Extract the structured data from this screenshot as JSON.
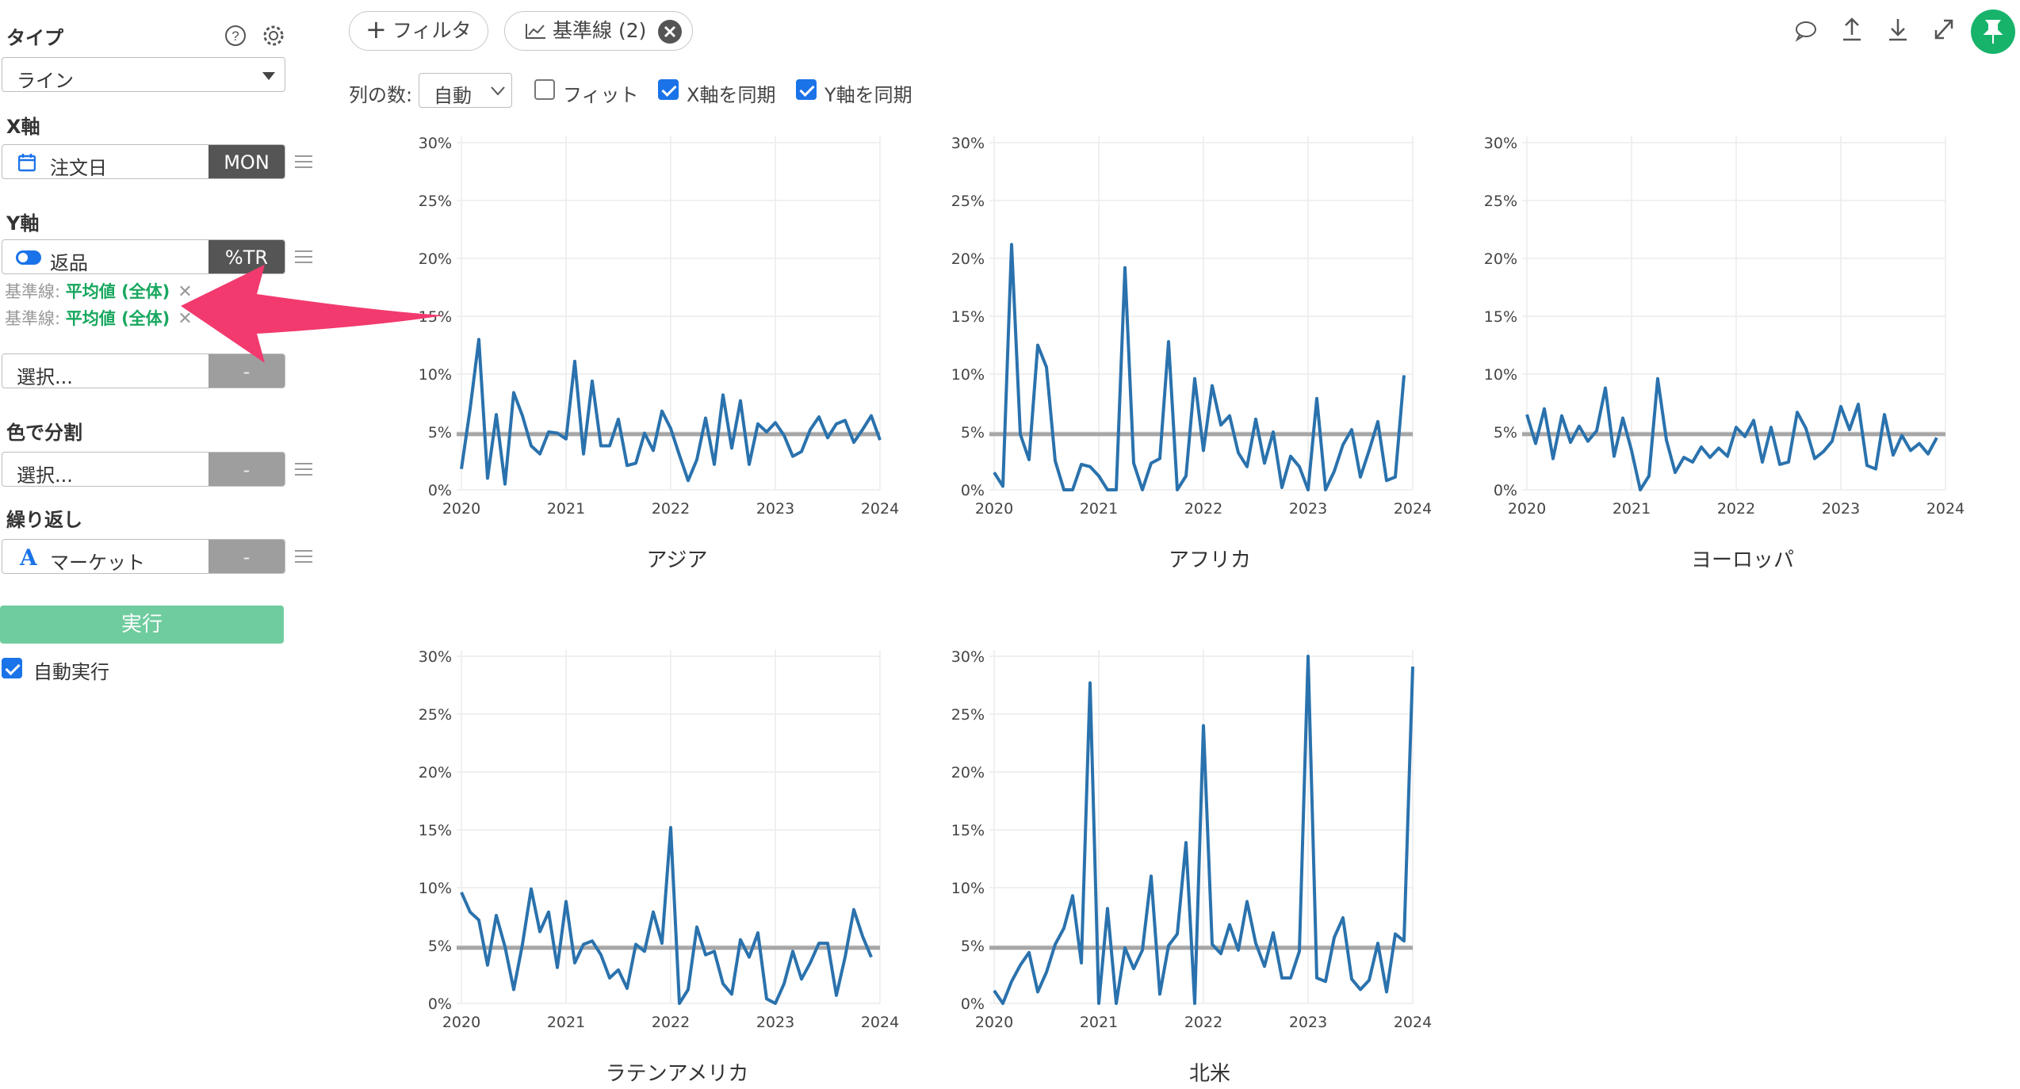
{
  "sidebar": {
    "type_label": "タイプ",
    "type_value": "ライン",
    "x_axis_label": "X軸",
    "x_field": "注文日",
    "x_agg": "MON",
    "y_axis_label": "Y軸",
    "y_field": "返品",
    "y_agg": "%TR",
    "ref_lines": [
      {
        "prefix": "基準線:",
        "value": "平均値 (全体)"
      },
      {
        "prefix": "基準線:",
        "value": "平均値 (全体)"
      }
    ],
    "extra_select": "選択...",
    "extra_btn": "-",
    "color_label": "色で分割",
    "color_select": "選択...",
    "color_btn": "-",
    "repeat_label": "繰り返し",
    "repeat_field": "マーケット",
    "repeat_btn": "-",
    "run_label": "実行",
    "auto_run_label": "自動実行",
    "colors": {
      "accent_green": "#6fcc9f",
      "ref_text": "#18a75f",
      "dark_btn": "#555555",
      "pin": "#18b36b"
    }
  },
  "topbar": {
    "filter_label": "フィルタ",
    "refline_label": "基準線 (2)",
    "columns_label": "列の数:",
    "columns_value": "自動",
    "fit_label": "フィット",
    "sync_x_label": "X軸を同期",
    "sync_y_label": "Y軸を同期",
    "fit_checked": false,
    "sync_x_checked": true,
    "sync_y_checked": true,
    "icons": [
      "comment-icon",
      "upload-icon",
      "download-icon",
      "expand-icon",
      "pin-icon"
    ]
  },
  "chart_data": {
    "type": "line",
    "x_ticks": [
      "2020",
      "2021",
      "2022",
      "2023",
      "2024"
    ],
    "y_ticks": [
      "0%",
      "5%",
      "10%",
      "15%",
      "20%",
      "25%",
      "30%"
    ],
    "ylim": [
      0,
      30
    ],
    "xlim": [
      "2020-01",
      "2024-01"
    ],
    "reference_line": {
      "label": "平均値 (全体)",
      "value": 4.8
    },
    "line_color": "#2a72ad",
    "ref_color": "#a6a6a6",
    "grid": true,
    "panels": [
      {
        "title": "アジア",
        "values": [
          1.8,
          7.0,
          13.0,
          1.0,
          6.5,
          0.5,
          8.4,
          6.4,
          3.8,
          3.1,
          5.0,
          4.9,
          4.4,
          11.1,
          3.1,
          9.4,
          3.8,
          3.8,
          6.1,
          2.1,
          2.3,
          4.9,
          3.4,
          6.8,
          5.3,
          3.0,
          0.8,
          2.6,
          6.2,
          2.2,
          8.2,
          3.6,
          7.7,
          2.2,
          5.7,
          5.0,
          5.8,
          4.7,
          2.9,
          3.3,
          5.2,
          6.3,
          4.5,
          5.7,
          6.0,
          4.1,
          5.2,
          6.4,
          4.3
        ]
      },
      {
        "title": "アフリカ",
        "values": [
          1.5,
          0.3,
          21.2,
          4.8,
          2.6,
          12.5,
          10.6,
          2.5,
          0.0,
          0.0,
          2.2,
          2.0,
          1.2,
          0.0,
          0.0,
          19.2,
          2.3,
          0.0,
          2.3,
          2.7,
          12.8,
          0.0,
          1.2,
          9.6,
          3.4,
          9.0,
          5.6,
          6.4,
          3.2,
          2.0,
          6.1,
          2.3,
          5.0,
          0.2,
          2.9,
          2.0,
          0.0,
          7.9,
          0.0,
          1.6,
          3.9,
          5.2,
          1.1,
          3.4,
          5.9,
          0.8,
          1.1,
          9.9
        ]
      },
      {
        "title": "ヨーロッパ",
        "values": [
          6.5,
          4.0,
          7.0,
          2.7,
          6.4,
          4.1,
          5.5,
          4.2,
          5.1,
          8.8,
          2.9,
          6.2,
          3.4,
          0.0,
          1.2,
          9.6,
          4.3,
          1.5,
          2.8,
          2.4,
          3.7,
          2.8,
          3.6,
          2.9,
          5.4,
          4.6,
          6.0,
          2.4,
          5.4,
          2.2,
          2.4,
          6.7,
          5.3,
          2.7,
          3.3,
          4.2,
          7.2,
          5.2,
          7.4,
          2.1,
          1.8,
          6.5,
          3.0,
          4.7,
          3.4,
          4.0,
          3.1,
          4.5
        ]
      },
      {
        "title": "ラテンアメリカ",
        "values": [
          9.6,
          7.9,
          7.2,
          3.3,
          7.6,
          4.9,
          1.2,
          5.1,
          9.9,
          6.2,
          7.9,
          3.1,
          8.8,
          3.5,
          5.1,
          5.4,
          4.2,
          2.2,
          2.9,
          1.3,
          5.1,
          4.5,
          7.9,
          5.2,
          15.2,
          0.0,
          1.2,
          6.6,
          4.2,
          4.5,
          1.7,
          0.8,
          5.5,
          4.0,
          6.1,
          0.4,
          0.0,
          1.7,
          4.5,
          2.1,
          3.5,
          5.2,
          5.2,
          0.7,
          4.0,
          8.1,
          5.8,
          4.0
        ]
      },
      {
        "title": "北米",
        "values": [
          1.1,
          0.0,
          1.9,
          3.3,
          4.4,
          1.0,
          2.7,
          5.1,
          6.5,
          9.3,
          3.5,
          27.7,
          0.0,
          8.2,
          0.0,
          4.8,
          3.0,
          4.6,
          11.0,
          0.8,
          5.0,
          6.0,
          13.9,
          0.0,
          24.0,
          5.1,
          4.3,
          6.8,
          4.6,
          8.8,
          5.2,
          3.2,
          6.1,
          2.2,
          2.2,
          4.5,
          30.0,
          2.2,
          1.9,
          5.7,
          7.4,
          2.1,
          1.2,
          2.0,
          5.2,
          1.0,
          6.0,
          5.4,
          29.1
        ]
      }
    ]
  }
}
